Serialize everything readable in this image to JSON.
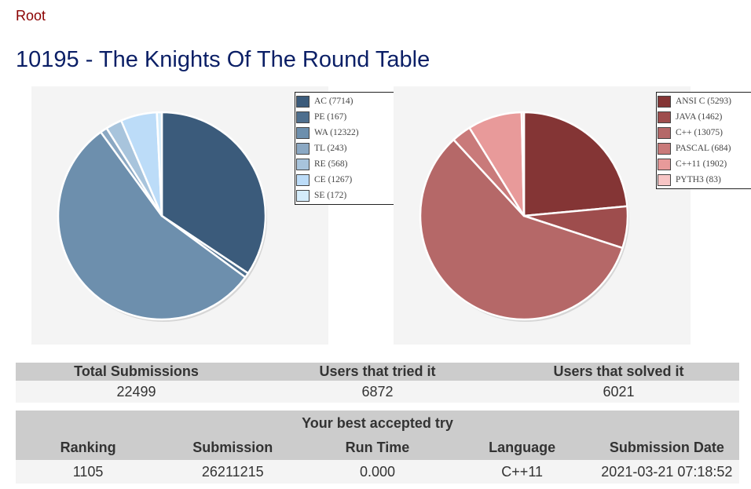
{
  "breadcrumb": {
    "root_label": "Root"
  },
  "page": {
    "title": "10195 - The Knights Of The Round Table"
  },
  "chart_data": [
    {
      "type": "pie",
      "legend_position": "right",
      "categories": [
        "AC (7714)",
        "PE (167)",
        "WA (12322)",
        "TL (243)",
        "RE (568)",
        "CE (1267)",
        "SE (172)"
      ],
      "values": [
        7714,
        167,
        12322,
        243,
        568,
        1267,
        172
      ],
      "colors": [
        "#3b5b7b",
        "#4e6f8e",
        "#6d8fad",
        "#8ba8c3",
        "#a8c4dc",
        "#bcdcf8",
        "#d4ecfb"
      ]
    },
    {
      "type": "pie",
      "legend_position": "right",
      "categories": [
        "ANSI C (5293)",
        "JAVA (1462)",
        "C++ (13075)",
        "PASCAL (684)",
        "C++11 (1902)",
        "PYTH3 (83)"
      ],
      "values": [
        5293,
        1462,
        13075,
        684,
        1902,
        83
      ],
      "colors": [
        "#843535",
        "#9e4d4d",
        "#b56868",
        "#c97a7a",
        "#e89a9a",
        "#f7c5c5"
      ]
    }
  ],
  "stats": {
    "headers": [
      "Total Submissions",
      "Users that tried it",
      "Users that solved it"
    ],
    "values": [
      "22499",
      "6872",
      "6021"
    ]
  },
  "best": {
    "caption": "Your best accepted try",
    "headers": [
      "Ranking",
      "Submission",
      "Run Time",
      "Language",
      "Submission Date"
    ],
    "values": [
      "1105",
      "26211215",
      "0.000",
      "C++11",
      "2021-03-21 07:18:52"
    ]
  }
}
